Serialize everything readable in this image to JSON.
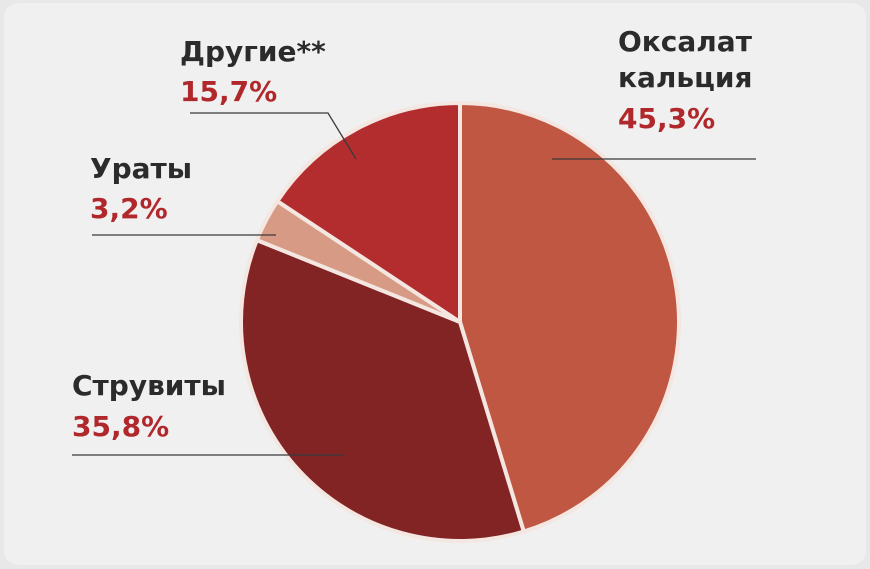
{
  "chart_data": {
    "type": "pie",
    "title": "",
    "start_angle_deg": 0,
    "direction": "clockwise",
    "slices": [
      {
        "label_lines": [
          "Оксалат",
          "кальция"
        ],
        "value": 45.3,
        "value_text": "45,3%",
        "color": "#bf5742"
      },
      {
        "label_lines": [
          "Струвиты"
        ],
        "value": 35.8,
        "value_text": "35,8%",
        "color": "#822324"
      },
      {
        "label_lines": [
          "Ураты"
        ],
        "value": 3.2,
        "value_text": "3,2%",
        "color": "#d79a84"
      },
      {
        "label_lines": [
          "Другие**"
        ],
        "value": 15.7,
        "value_text": "15,7%",
        "color": "#b32d2f"
      }
    ],
    "separator_color": "#f4e6e0",
    "label_name_color": "#2b2b2b",
    "label_value_color": "#b0282b"
  }
}
